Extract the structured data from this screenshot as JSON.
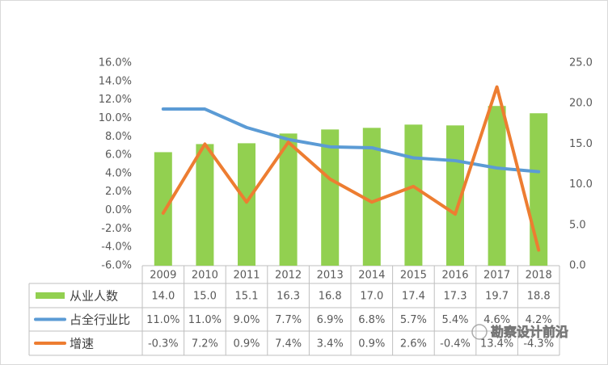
{
  "chart_data": {
    "type": "bar",
    "categories": [
      "2009",
      "2010",
      "2011",
      "2012",
      "2013",
      "2014",
      "2015",
      "2016",
      "2017",
      "2018"
    ],
    "series": [
      {
        "name": "从业人数",
        "type": "bar",
        "color": "#92d050",
        "axis": "y2",
        "values": [
          14.0,
          15.0,
          15.1,
          16.3,
          16.8,
          17.0,
          17.4,
          17.3,
          19.7,
          18.8
        ],
        "value_labels": [
          "14.0",
          "15.0",
          "15.1",
          "16.3",
          "16.8",
          "17.0",
          "17.4",
          "17.3",
          "19.7",
          "18.8"
        ]
      },
      {
        "name": "占全行业比",
        "type": "line",
        "color": "#5b9bd5",
        "values": [
          11.0,
          11.0,
          9.0,
          7.7,
          6.9,
          6.8,
          5.7,
          5.4,
          4.6,
          4.2
        ],
        "value_labels": [
          "11.0%",
          "11.0%",
          "9.0%",
          "7.7%",
          "6.9%",
          "6.8%",
          "5.7%",
          "5.4%",
          "4.6%",
          "4.2%"
        ]
      },
      {
        "name": "增速",
        "type": "line",
        "color": "#ed7d31",
        "values": [
          -0.3,
          7.2,
          0.9,
          7.4,
          3.4,
          0.9,
          2.6,
          -0.4,
          13.4,
          -4.3
        ],
        "value_labels": [
          "-0.3%",
          "7.2%",
          "0.9%",
          "7.4%",
          "3.4%",
          "0.9%",
          "2.6%",
          "-0.4%",
          "13.4%",
          "-4.3%"
        ]
      }
    ],
    "ylim": [
      -6,
      16
    ],
    "yticks": [
      {
        "value": -6,
        "label": "-6.0%"
      },
      {
        "value": -4,
        "label": "-4.0%"
      },
      {
        "value": -2,
        "label": "-2.0%"
      },
      {
        "value": 0,
        "label": "0.0%"
      },
      {
        "value": 2,
        "label": "2.0%"
      },
      {
        "value": 4,
        "label": "4.0%"
      },
      {
        "value": 6,
        "label": "6.0%"
      },
      {
        "value": 8,
        "label": "8.0%"
      },
      {
        "value": 10,
        "label": "10.0%"
      },
      {
        "value": 12,
        "label": "12.0%"
      },
      {
        "value": 14,
        "label": "14.0%"
      },
      {
        "value": 16,
        "label": "16.0%"
      }
    ],
    "y2lim": [
      0,
      25
    ],
    "y2ticks": [
      {
        "value": 0,
        "label": "0.0"
      },
      {
        "value": 5,
        "label": "5.0"
      },
      {
        "value": 10,
        "label": "10.0"
      },
      {
        "value": 15,
        "label": "15.0"
      },
      {
        "value": 20,
        "label": "20.0"
      },
      {
        "value": 25,
        "label": "25.0"
      }
    ],
    "grid": false,
    "watermark": "勘察设计前沿"
  }
}
